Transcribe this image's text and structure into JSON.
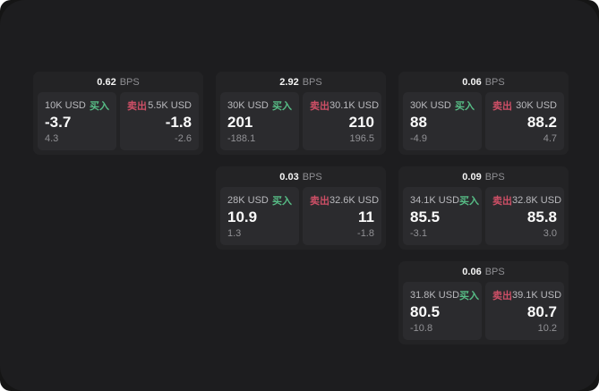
{
  "labels": {
    "buy": "买入",
    "sell": "卖出",
    "bps_unit": "BPS"
  },
  "colors": {
    "buy_green": "#57bd86",
    "sell_red": "#cd4f66",
    "panel_bg": "#1d1d1f",
    "card_bg": "#232325",
    "subpanel_bg": "#2b2b2e"
  },
  "cards": [
    {
      "bps": "0.62",
      "grid": {
        "col": 1,
        "row": 1
      },
      "buy": {
        "notional": "10K USD",
        "price": "-3.7",
        "change": "4.3"
      },
      "sell": {
        "notional": "5.5K USD",
        "price": "-1.8",
        "change": "-2.6"
      }
    },
    {
      "bps": "2.92",
      "grid": {
        "col": 2,
        "row": 1
      },
      "buy": {
        "notional": "30K USD",
        "price": "201",
        "change": "-188.1"
      },
      "sell": {
        "notional": "30.1K USD",
        "price": "210",
        "change": "196.5"
      }
    },
    {
      "bps": "0.06",
      "grid": {
        "col": 3,
        "row": 1
      },
      "buy": {
        "notional": "30K USD",
        "price": "88",
        "change": "-4.9"
      },
      "sell": {
        "notional": "30K USD",
        "price": "88.2",
        "change": "4.7"
      }
    },
    {
      "bps": "0.03",
      "grid": {
        "col": 2,
        "row": 2
      },
      "buy": {
        "notional": "28K USD",
        "price": "10.9",
        "change": "1.3"
      },
      "sell": {
        "notional": "32.6K USD",
        "price": "11",
        "change": "-1.8"
      }
    },
    {
      "bps": "0.09",
      "grid": {
        "col": 3,
        "row": 2
      },
      "buy": {
        "notional": "34.1K USD",
        "price": "85.5",
        "change": "-3.1"
      },
      "sell": {
        "notional": "32.8K USD",
        "price": "85.8",
        "change": "3.0"
      }
    },
    {
      "bps": "0.06",
      "grid": {
        "col": 3,
        "row": 3
      },
      "buy": {
        "notional": "31.8K USD",
        "price": "80.5",
        "change": "-10.8"
      },
      "sell": {
        "notional": "39.1K USD",
        "price": "80.7",
        "change": "10.2"
      }
    }
  ]
}
